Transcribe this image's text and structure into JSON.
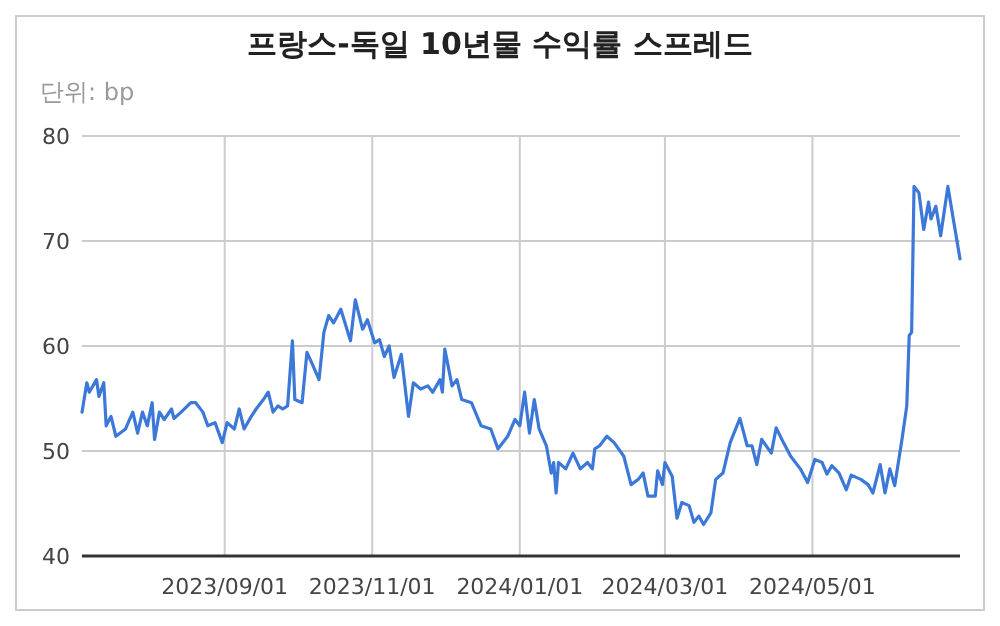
{
  "chart_data": {
    "type": "line",
    "title": "프랑스-독일 10년물 수익률 스프레드",
    "subtitle": "단위: bp",
    "x": [
      "2023-07-04",
      "2023-07-06",
      "2023-07-07",
      "2023-07-10",
      "2023-07-11",
      "2023-07-13",
      "2023-07-14",
      "2023-07-16",
      "2023-07-18",
      "2023-07-22",
      "2023-07-25",
      "2023-07-27",
      "2023-07-29",
      "2023-07-31",
      "2023-08-02",
      "2023-08-03",
      "2023-08-05",
      "2023-08-07",
      "2023-08-10",
      "2023-08-11",
      "2023-08-14",
      "2023-08-18",
      "2023-08-20",
      "2023-08-23",
      "2023-08-25",
      "2023-08-28",
      "2023-08-31",
      "2023-09-02",
      "2023-09-05",
      "2023-09-07",
      "2023-09-09",
      "2023-09-12",
      "2023-09-14",
      "2023-09-17",
      "2023-09-19",
      "2023-09-21",
      "2023-09-23",
      "2023-09-25",
      "2023-09-27",
      "2023-09-29",
      "2023-09-30",
      "2023-10-03",
      "2023-10-05",
      "2023-10-07",
      "2023-10-10",
      "2023-10-12",
      "2023-10-14",
      "2023-10-16",
      "2023-10-19",
      "2023-10-23",
      "2023-10-25",
      "2023-10-28",
      "2023-10-30",
      "2023-11-02",
      "2023-11-04",
      "2023-11-06",
      "2023-11-08",
      "2023-11-10",
      "2023-11-13",
      "2023-11-16",
      "2023-11-18",
      "2023-11-21",
      "2023-11-24",
      "2023-11-26",
      "2023-11-29",
      "2023-11-30",
      "2023-12-01",
      "2023-12-04",
      "2023-12-06",
      "2023-12-08",
      "2023-12-12",
      "2023-12-16",
      "2023-12-20",
      "2023-12-23",
      "2023-12-27",
      "2023-12-30",
      "2024-01-01",
      "2024-01-03",
      "2024-01-05",
      "2024-01-07",
      "2024-01-09",
      "2024-01-12",
      "2024-01-14",
      "2024-01-15",
      "2024-01-16",
      "2024-01-17",
      "2024-01-20",
      "2024-01-23",
      "2024-01-26",
      "2024-01-29",
      "2024-01-31",
      "2024-02-01",
      "2024-02-03",
      "2024-02-06",
      "2024-02-09",
      "2024-02-13",
      "2024-02-16",
      "2024-02-19",
      "2024-02-21",
      "2024-02-23",
      "2024-02-26",
      "2024-02-27",
      "2024-02-29",
      "2024-03-01",
      "2024-03-04",
      "2024-03-06",
      "2024-03-08",
      "2024-03-11",
      "2024-03-13",
      "2024-03-15",
      "2024-03-17",
      "2024-03-20",
      "2024-03-22",
      "2024-03-25",
      "2024-03-28",
      "2024-04-01",
      "2024-04-04",
      "2024-04-06",
      "2024-04-08",
      "2024-04-10",
      "2024-04-14",
      "2024-04-16",
      "2024-04-19",
      "2024-04-22",
      "2024-04-26",
      "2024-04-29",
      "2024-05-02",
      "2024-05-05",
      "2024-05-07",
      "2024-05-09",
      "2024-05-12",
      "2024-05-15",
      "2024-05-17",
      "2024-05-21",
      "2024-05-24",
      "2024-05-26",
      "2024-05-29",
      "2024-05-31",
      "2024-06-02",
      "2024-06-04",
      "2024-06-07",
      "2024-06-09",
      "2024-06-10",
      "2024-06-11",
      "2024-06-12",
      "2024-06-14",
      "2024-06-16",
      "2024-06-18",
      "2024-06-19",
      "2024-06-21",
      "2024-06-23",
      "2024-06-26",
      "2024-06-28",
      "2024-07-01"
    ],
    "series": [
      {
        "color": "#3c78d8",
        "values": [
          53.7,
          56.5,
          55.6,
          56.8,
          55.2,
          56.5,
          52.4,
          53.3,
          51.4,
          52.1,
          53.7,
          51.7,
          53.7,
          52.4,
          54.6,
          51.1,
          53.7,
          53.0,
          54.0,
          53.1,
          53.7,
          54.6,
          54.6,
          53.7,
          52.4,
          52.7,
          50.8,
          52.7,
          52.1,
          54.0,
          52.1,
          53.3,
          54.0,
          54.9,
          55.6,
          53.7,
          54.3,
          54.0,
          54.3,
          60.5,
          54.9,
          54.6,
          59.4,
          58.4,
          56.8,
          61.3,
          62.9,
          62.2,
          63.5,
          60.5,
          64.4,
          61.6,
          62.5,
          60.3,
          60.6,
          59.0,
          60.0,
          57.0,
          59.2,
          53.3,
          56.5,
          55.9,
          56.2,
          55.6,
          56.8,
          55.6,
          59.7,
          56.2,
          56.8,
          54.9,
          54.6,
          52.4,
          52.1,
          50.2,
          51.4,
          53.0,
          52.4,
          55.6,
          51.7,
          54.9,
          52.1,
          50.5,
          47.9,
          48.9,
          46.0,
          48.9,
          48.3,
          49.8,
          48.3,
          48.9,
          48.3,
          50.2,
          50.5,
          51.4,
          50.8,
          49.5,
          46.8,
          47.3,
          47.9,
          45.7,
          45.7,
          48.1,
          46.8,
          48.9,
          47.6,
          43.6,
          45.1,
          44.8,
          43.2,
          43.8,
          43.0,
          44.1,
          47.3,
          47.9,
          50.8,
          53.1,
          50.5,
          50.5,
          48.7,
          51.1,
          49.8,
          52.2,
          50.8,
          49.5,
          48.3,
          47.0,
          49.2,
          48.9,
          47.8,
          48.6,
          47.9,
          46.3,
          47.7,
          47.3,
          46.8,
          46.0,
          48.7,
          46.0,
          48.3,
          46.7,
          51.1,
          54.3,
          61.0,
          61.3,
          75.2,
          74.6,
          71.1,
          73.7,
          72.1,
          73.3,
          70.5,
          75.2,
          72.4,
          68.3
        ]
      }
    ],
    "xlim": [
      "2023-07-04",
      "2024-07-01"
    ],
    "xticks": [
      {
        "value": "2023-09-01",
        "label": "2023/09/01"
      },
      {
        "value": "2023-11-01",
        "label": "2023/11/01"
      },
      {
        "value": "2024-01-01",
        "label": "2024/01/01"
      },
      {
        "value": "2024-03-01",
        "label": "2024/03/01"
      },
      {
        "value": "2024-05-01",
        "label": "2024/05/01"
      }
    ],
    "ylim": [
      40,
      80
    ],
    "yticks": [
      40,
      50,
      60,
      70,
      80
    ],
    "grid": true,
    "line_style": "solid",
    "marker": "none"
  }
}
